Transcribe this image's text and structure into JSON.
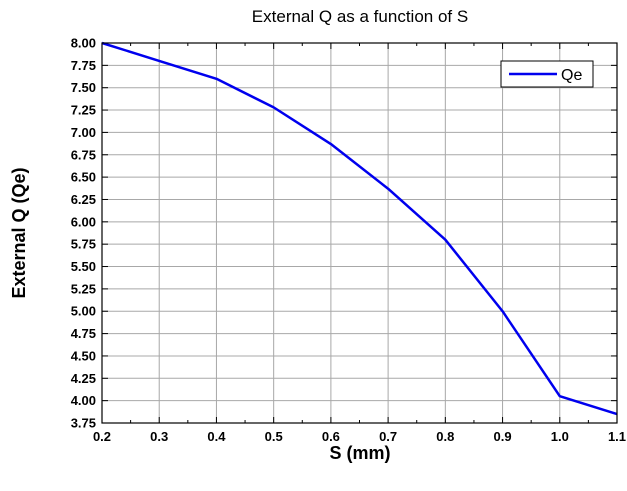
{
  "chart_data": {
    "type": "line",
    "title": "External Q as a function of S",
    "xlabel": "S (mm)",
    "ylabel": "External Q (Qe)",
    "xlim": [
      0.2,
      1.1
    ],
    "ylim": [
      3.75,
      8.0
    ],
    "x_ticks": [
      "0.2",
      "0.3",
      "0.4",
      "0.5",
      "0.6",
      "0.7",
      "0.8",
      "0.9",
      "1.0",
      "1.1"
    ],
    "y_ticks": [
      "3.75",
      "4.00",
      "4.25",
      "4.50",
      "4.75",
      "5.00",
      "5.25",
      "5.50",
      "5.75",
      "6.00",
      "6.25",
      "6.50",
      "6.75",
      "7.00",
      "7.25",
      "7.50",
      "7.75",
      "8.00"
    ],
    "grid": true,
    "legend_position": "top-right",
    "series": [
      {
        "name": "Qe",
        "color": "#0000ee",
        "x": [
          0.2,
          0.3,
          0.4,
          0.5,
          0.6,
          0.7,
          0.8,
          0.9,
          1.0,
          1.1
        ],
        "y": [
          8.0,
          7.8,
          7.6,
          7.28,
          6.87,
          6.37,
          5.8,
          5.0,
          4.05,
          3.85
        ]
      }
    ]
  }
}
